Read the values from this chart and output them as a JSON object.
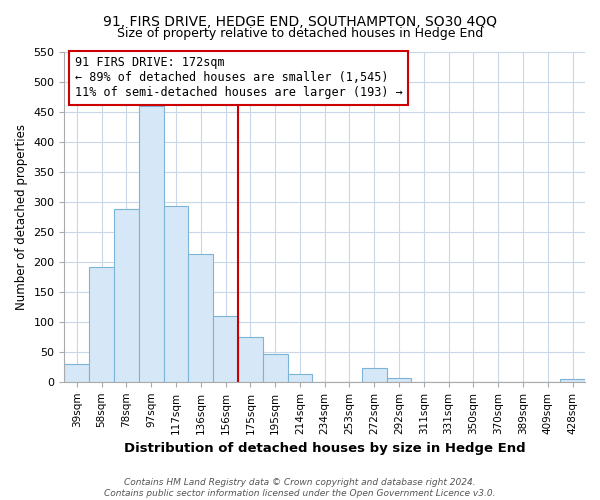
{
  "title": "91, FIRS DRIVE, HEDGE END, SOUTHAMPTON, SO30 4QQ",
  "subtitle": "Size of property relative to detached houses in Hedge End",
  "xlabel": "Distribution of detached houses by size in Hedge End",
  "ylabel": "Number of detached properties",
  "categories": [
    "39sqm",
    "58sqm",
    "78sqm",
    "97sqm",
    "117sqm",
    "136sqm",
    "156sqm",
    "175sqm",
    "195sqm",
    "214sqm",
    "234sqm",
    "253sqm",
    "272sqm",
    "292sqm",
    "311sqm",
    "331sqm",
    "350sqm",
    "370sqm",
    "389sqm",
    "409sqm",
    "428sqm"
  ],
  "values": [
    30,
    192,
    288,
    460,
    293,
    212,
    110,
    74,
    47,
    13,
    0,
    0,
    23,
    7,
    0,
    0,
    0,
    0,
    0,
    0,
    5
  ],
  "property_line_x": 7,
  "annotation_line1": "91 FIRS DRIVE: 172sqm",
  "annotation_line2": "← 89% of detached houses are smaller (1,545)",
  "annotation_line3": "11% of semi-detached houses are larger (193) →",
  "bar_facecolor": "#d6e8f7",
  "bar_edgecolor": "#7cb4d8",
  "line_color": "#cc0000",
  "annotation_box_edgecolor": "#cc0000",
  "footer_line1": "Contains HM Land Registry data © Crown copyright and database right 2024.",
  "footer_line2": "Contains public sector information licensed under the Open Government Licence v3.0.",
  "ylim": [
    0,
    550
  ],
  "yticks": [
    0,
    50,
    100,
    150,
    200,
    250,
    300,
    350,
    400,
    450,
    500,
    550
  ],
  "grid_color": "#c8d8e8",
  "title_fontsize": 10,
  "subtitle_fontsize": 9
}
